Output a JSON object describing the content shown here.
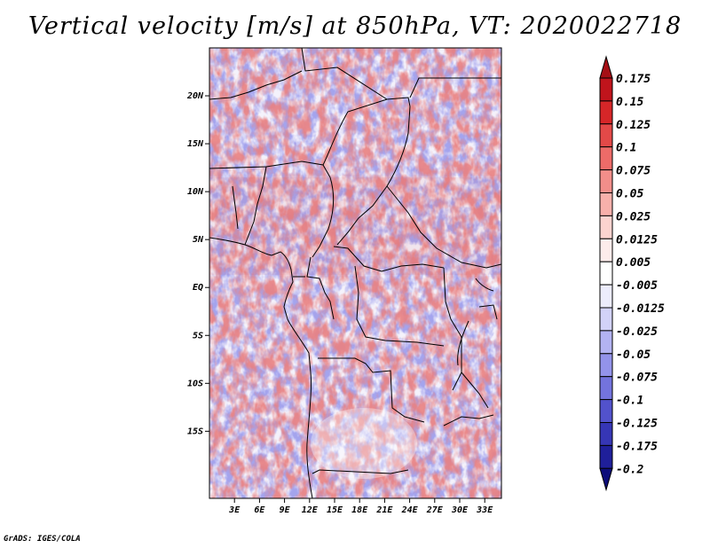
{
  "title": "Vertical velocity [m/s] at 850hPa, VT: 2020022718",
  "credit": "GrADS: IGES/COLA",
  "chart_data": {
    "type": "heatmap",
    "title": "Vertical velocity [m/s] at 850hPa, VT: 2020022718",
    "variable": "Vertical velocity",
    "units": "m/s",
    "level": "850hPa",
    "valid_time": "2020022718",
    "lon_range": [
      0,
      35
    ],
    "lat_range": [
      -22,
      25
    ],
    "lat_ticks": [
      {
        "value": 20,
        "label": "20N"
      },
      {
        "value": 15,
        "label": "15N"
      },
      {
        "value": 10,
        "label": "10N"
      },
      {
        "value": 5,
        "label": "5N"
      },
      {
        "value": 0,
        "label": "EQ"
      },
      {
        "value": -5,
        "label": "5S"
      },
      {
        "value": -10,
        "label": "10S"
      },
      {
        "value": -15,
        "label": "15S"
      }
    ],
    "lon_ticks": [
      {
        "value": 3,
        "label": "3E"
      },
      {
        "value": 6,
        "label": "6E"
      },
      {
        "value": 9,
        "label": "9E"
      },
      {
        "value": 12,
        "label": "12E"
      },
      {
        "value": 15,
        "label": "15E"
      },
      {
        "value": 18,
        "label": "18E"
      },
      {
        "value": 21,
        "label": "21E"
      },
      {
        "value": 24,
        "label": "24E"
      },
      {
        "value": 27,
        "label": "27E"
      },
      {
        "value": 30,
        "label": "30E"
      },
      {
        "value": 33,
        "label": "33E"
      }
    ],
    "colorbar": {
      "labels": [
        "0.175",
        "0.15",
        "0.125",
        "0.1",
        "0.075",
        "0.05",
        "0.025",
        "0.0125",
        "0.005",
        "-0.005",
        "-0.0125",
        "-0.025",
        "-0.05",
        "-0.075",
        "-0.1",
        "-0.125",
        "-0.175",
        "-0.2"
      ],
      "colors": [
        "#a50f15",
        "#c0141c",
        "#d62628",
        "#e34948",
        "#ed6b68",
        "#f28e8a",
        "#f7b0ab",
        "#fbd3cf",
        "#fdeceb",
        "#ffffff",
        "#ececfc",
        "#d2d2f8",
        "#b3b3f2",
        "#9393ea",
        "#7373dd",
        "#5252cc",
        "#3636b5",
        "#1f1f9a",
        "#0d0d7a"
      ]
    }
  }
}
